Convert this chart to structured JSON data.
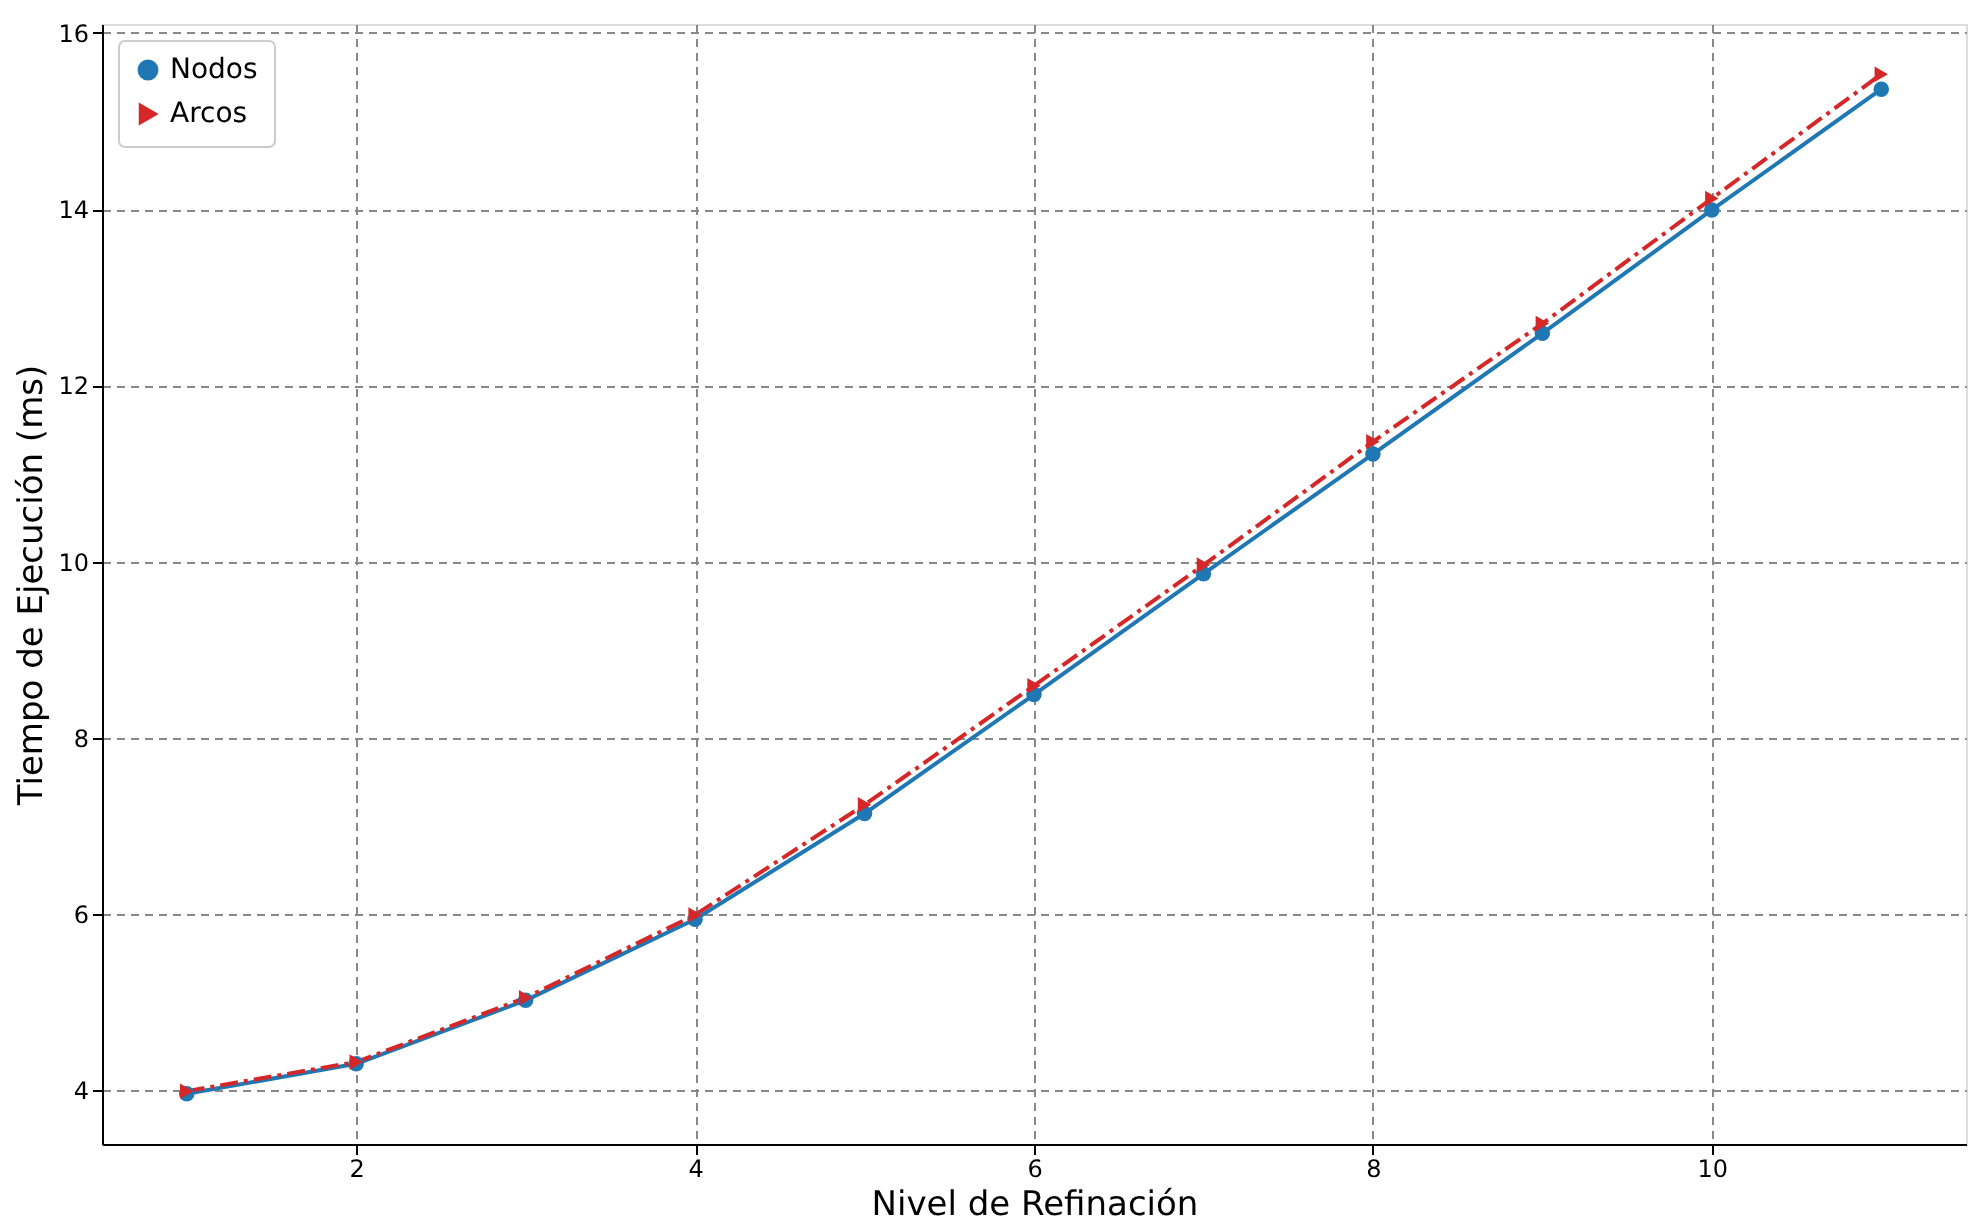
{
  "chart_data": {
    "type": "line",
    "xlabel": "Nivel de Refinación",
    "ylabel": "Tiempo de Ejecución (ms)",
    "x": [
      1,
      2,
      3,
      4,
      5,
      6,
      7,
      8,
      9,
      10,
      11
    ],
    "series": [
      {
        "name": "Nodos",
        "color": "#1f77b4",
        "marker": "circle",
        "line_style": "solid",
        "values": [
          3.96,
          4.3,
          5.02,
          5.94,
          7.14,
          8.49,
          9.86,
          11.22,
          12.59,
          13.99,
          15.36
        ]
      },
      {
        "name": "Arcos",
        "color": "#d62728",
        "marker": "triangle",
        "line_style": "dashdot",
        "values": [
          3.99,
          4.32,
          5.05,
          5.99,
          7.24,
          8.59,
          9.96,
          11.36,
          12.7,
          14.12,
          15.53
        ]
      }
    ],
    "xlim": [
      0.5,
      11.5
    ],
    "ylim": [
      3.39,
      16.1
    ],
    "xticks": [
      2,
      4,
      6,
      8,
      10
    ],
    "yticks": [
      4,
      6,
      8,
      10,
      12,
      14,
      16
    ],
    "grid": true,
    "legend": "top left"
  }
}
